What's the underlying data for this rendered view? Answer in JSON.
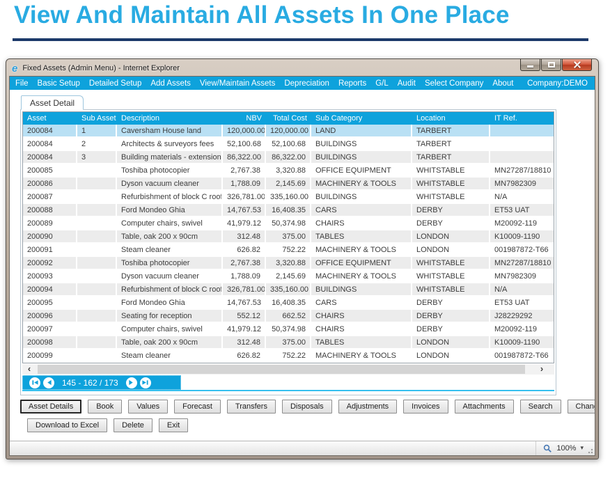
{
  "page": {
    "heading": "View And Maintain All Assets In One Place"
  },
  "colors": {
    "heading": "#29abe2",
    "heading_underline": "#1c3a6a",
    "menubar_blue": "#0ea2dc",
    "selected_row": "#b9e0f4",
    "alt_row": "#ececec",
    "close_button_red": "#c5452b"
  },
  "window": {
    "title": "Fixed Assets (Admin Menu) - Internet Explorer",
    "menubar": {
      "items": [
        "File",
        "Basic Setup",
        "Detailed Setup",
        "Add Assets",
        "View/Maintain Assets",
        "Depreciation",
        "Reports",
        "G/L",
        "Audit",
        "Select Company",
        "About"
      ],
      "company": "Company:DEMO"
    },
    "tab_label": "Asset Detail",
    "grid": {
      "columns": [
        "Asset",
        "Sub Asset",
        "Description",
        "NBV",
        "Total Cost",
        "Sub Category",
        "Location",
        "IT Ref."
      ],
      "selected_row": 0,
      "rows": [
        [
          "200084",
          "1",
          "Caversham House land",
          "120,000.00",
          "120,000.00",
          "LAND",
          "TARBERT",
          ""
        ],
        [
          "200084",
          "2",
          "Architects & surveyors fees",
          "52,100.68",
          "52,100.68",
          "BUILDINGS",
          "TARBERT",
          ""
        ],
        [
          "200084",
          "3",
          "Building materials - extension",
          "86,322.00",
          "86,322.00",
          "BUILDINGS",
          "TARBERT",
          ""
        ],
        [
          "200085",
          "",
          "Toshiba photocopier",
          "2,767.38",
          "3,320.88",
          "OFFICE EQUIPMENT",
          "WHITSTABLE",
          "MN27287/18810"
        ],
        [
          "200086",
          "",
          "Dyson vacuum cleaner",
          "1,788.09",
          "2,145.69",
          "MACHINERY & TOOLS",
          "WHITSTABLE",
          "MN7982309"
        ],
        [
          "200087",
          "",
          "Refurbishment of block C roof",
          "326,781.00",
          "335,160.00",
          "BUILDINGS",
          "WHITSTABLE",
          "N/A"
        ],
        [
          "200088",
          "",
          "Ford Mondeo Ghia",
          "14,767.53",
          "16,408.35",
          "CARS",
          "DERBY",
          "ET53 UAT"
        ],
        [
          "200089",
          "",
          "Computer chairs, swivel",
          "41,979.12",
          "50,374.98",
          "CHAIRS",
          "DERBY",
          "M20092-119"
        ],
        [
          "200090",
          "",
          "Table, oak 200 x 90cm",
          "312.48",
          "375.00",
          "TABLES",
          "LONDON",
          "K10009-1190"
        ],
        [
          "200091",
          "",
          "Steam cleaner",
          "626.82",
          "752.22",
          "MACHINERY & TOOLS",
          "LONDON",
          "001987872-T66"
        ],
        [
          "200092",
          "",
          "Toshiba photocopier",
          "2,767.38",
          "3,320.88",
          "OFFICE EQUIPMENT",
          "WHITSTABLE",
          "MN27287/18810"
        ],
        [
          "200093",
          "",
          "Dyson vacuum cleaner",
          "1,788.09",
          "2,145.69",
          "MACHINERY & TOOLS",
          "WHITSTABLE",
          "MN7982309"
        ],
        [
          "200094",
          "",
          "Refurbishment of block C roof",
          "326,781.00",
          "335,160.00",
          "BUILDINGS",
          "WHITSTABLE",
          "N/A"
        ],
        [
          "200095",
          "",
          "Ford Mondeo Ghia",
          "14,767.53",
          "16,408.35",
          "CARS",
          "DERBY",
          "ET53 UAT"
        ],
        [
          "200096",
          "",
          "Seating for reception",
          "552.12",
          "662.52",
          "CHAIRS",
          "DERBY",
          "J28229292"
        ],
        [
          "200097",
          "",
          "Computer chairs, swivel",
          "41,979.12",
          "50,374.98",
          "CHAIRS",
          "DERBY",
          "M20092-119"
        ],
        [
          "200098",
          "",
          "Table, oak 200 x 90cm",
          "312.48",
          "375.00",
          "TABLES",
          "LONDON",
          "K10009-1190"
        ],
        [
          "200099",
          "",
          "Steam cleaner",
          "626.82",
          "752.22",
          "MACHINERY & TOOLS",
          "LONDON",
          "001987872-T66"
        ]
      ]
    },
    "pager": {
      "label": "145 - 162 / 173"
    },
    "action_buttons_row1": [
      "Asset Details",
      "Book",
      "Values",
      "Forecast",
      "Transfers",
      "Disposals",
      "Adjustments",
      "Invoices",
      "Attachments",
      "Search",
      "Change Asset ID"
    ],
    "action_buttons_row2": [
      "Download to Excel",
      "Delete",
      "Exit"
    ],
    "status_bar": {
      "zoom_level": "100%"
    }
  }
}
